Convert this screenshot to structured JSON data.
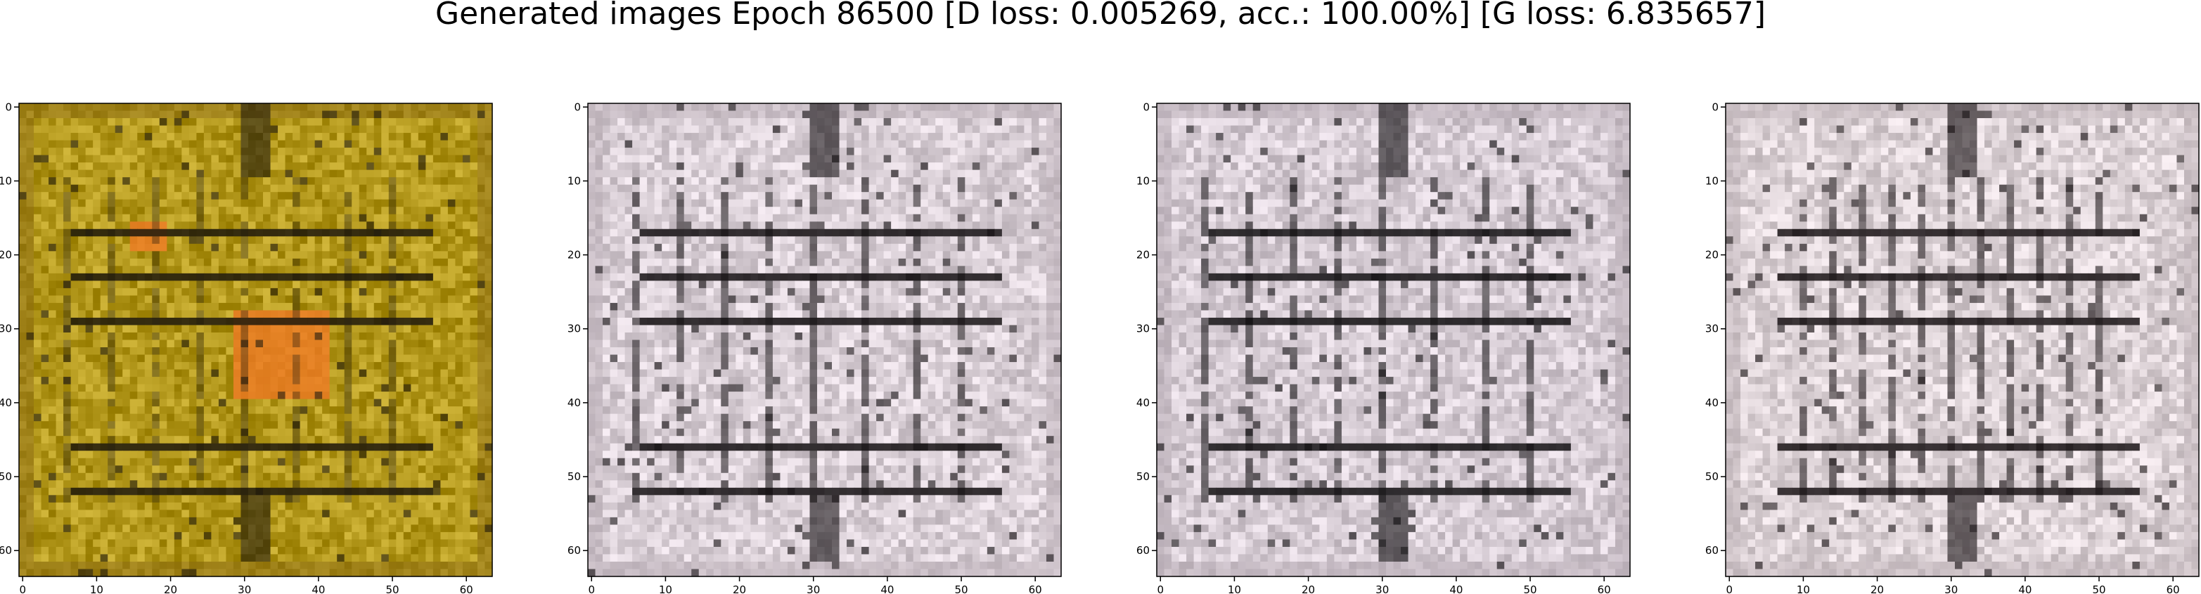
{
  "figure": {
    "title": "Generated images Epoch 86500 [D loss: 0.005269, acc.: 100.00%] [G loss: 6.835657]"
  },
  "panels": [
    {
      "id": "sample-1",
      "x_ticks": [
        "0",
        "10",
        "20",
        "30",
        "40",
        "50",
        "60"
      ],
      "y_ticks": [
        "0",
        "10",
        "20",
        "30",
        "40",
        "50",
        "60"
      ],
      "palette": {
        "base": "#b3981c",
        "dark": "#1e180c",
        "warm": "#ee7a24",
        "border": "#8a6a14"
      }
    },
    {
      "id": "sample-2",
      "x_ticks": [
        "0",
        "10",
        "20",
        "30",
        "40",
        "50",
        "60"
      ],
      "y_ticks": [
        "0",
        "10",
        "20",
        "30",
        "40",
        "50",
        "60"
      ],
      "palette": {
        "base": "#d9cfd6",
        "dark": "#141012",
        "warm": "#c9b8c6",
        "border": "#b9adb5"
      }
    },
    {
      "id": "sample-3",
      "x_ticks": [
        "0",
        "10",
        "20",
        "30",
        "40",
        "50",
        "60"
      ],
      "y_ticks": [
        "0",
        "10",
        "20",
        "30",
        "40",
        "50",
        "60"
      ],
      "palette": {
        "base": "#d6ccd4",
        "dark": "#121012",
        "warm": "#c4b6c2",
        "border": "#b5a9b2"
      }
    },
    {
      "id": "sample-4",
      "x_ticks": [
        "0",
        "10",
        "20",
        "30",
        "40",
        "50",
        "60"
      ],
      "y_ticks": [
        "0",
        "10",
        "20",
        "30",
        "40",
        "50",
        "60"
      ],
      "palette": {
        "base": "#dcd2d6",
        "dark": "#1a1416",
        "warm": "#cbbcc4",
        "border": "#bdb1b6"
      }
    }
  ]
}
